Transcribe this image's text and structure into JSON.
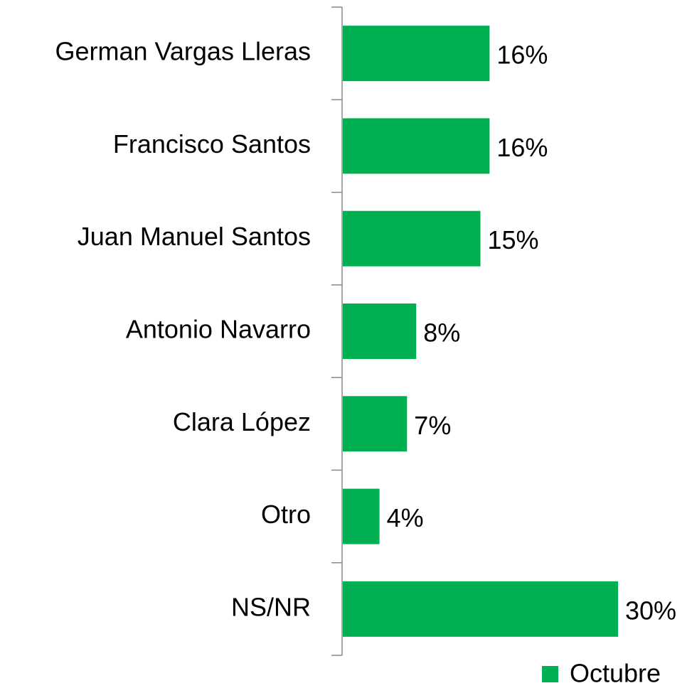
{
  "chart_data": {
    "type": "bar",
    "orientation": "horizontal",
    "categories": [
      "German Vargas Lleras",
      "Francisco Santos",
      "Juan Manuel Santos",
      "Antonio Navarro",
      "Clara López",
      "Otro",
      "NS/NR"
    ],
    "series": [
      {
        "name": "Octubre",
        "color": "#00b050",
        "values": [
          16,
          16,
          15,
          8,
          7,
          4,
          30
        ],
        "value_labels": [
          "16%",
          "16%",
          "15%",
          "8%",
          "7%",
          "4%",
          "30%"
        ]
      }
    ],
    "legend": "bottom-right"
  }
}
